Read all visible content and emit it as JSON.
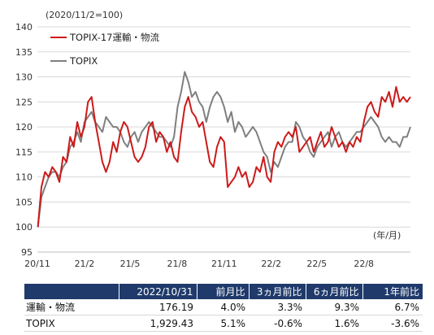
{
  "chart_data": {
    "type": "line",
    "base_note": "(2020/11/2=100)",
    "unit_note": "(年/月)",
    "ylim": [
      95,
      140
    ],
    "yticks": [
      "95",
      "100",
      "105",
      "110",
      "115",
      "120",
      "125",
      "130",
      "135",
      "140"
    ],
    "xticks": [
      "20/11",
      "21/2",
      "21/5",
      "21/8",
      "21/11",
      "22/2",
      "22/5",
      "22/8"
    ],
    "grid": "horizontal",
    "legend_position": "top-left",
    "series": [
      {
        "name": "TOPIX-17運輸・物流",
        "color": "#cc1a1a",
        "x": [
          "2020/11/2",
          "2020/11/9",
          "2020/11/16",
          "2020/11/23",
          "2020/11/30",
          "2020/12/7",
          "2020/12/14",
          "2020/12/21",
          "2020/12/28",
          "2021/1/4",
          "2021/1/11",
          "2021/1/18",
          "2021/1/25",
          "2021/2/1",
          "2021/2/8",
          "2021/2/15",
          "2021/2/22",
          "2021/3/1",
          "2021/3/8",
          "2021/3/15",
          "2021/3/22",
          "2021/3/29",
          "2021/4/5",
          "2021/4/12",
          "2021/4/19",
          "2021/4/26",
          "2021/5/3",
          "2021/5/10",
          "2021/5/17",
          "2021/5/24",
          "2021/5/31",
          "2021/6/7",
          "2021/6/14",
          "2021/6/21",
          "2021/6/28",
          "2021/7/5",
          "2021/7/12",
          "2021/7/19",
          "2021/7/26",
          "2021/8/2",
          "2021/8/9",
          "2021/8/16",
          "2021/8/23",
          "2021/8/30",
          "2021/9/6",
          "2021/9/13",
          "2021/9/20",
          "2021/9/27",
          "2021/10/4",
          "2021/10/11",
          "2021/10/18",
          "2021/10/25",
          "2021/11/1",
          "2021/11/8",
          "2021/11/15",
          "2021/11/22",
          "2021/11/29",
          "2021/12/6",
          "2021/12/13",
          "2021/12/20",
          "2021/12/27",
          "2022/1/3",
          "2022/1/10",
          "2022/1/17",
          "2022/1/24",
          "2022/1/31",
          "2022/2/7",
          "2022/2/14",
          "2022/2/21",
          "2022/2/28",
          "2022/3/7",
          "2022/3/14",
          "2022/3/21",
          "2022/3/28",
          "2022/4/4",
          "2022/4/11",
          "2022/4/18",
          "2022/4/25",
          "2022/5/2",
          "2022/5/9",
          "2022/5/16",
          "2022/5/23",
          "2022/5/30",
          "2022/6/6",
          "2022/6/13",
          "2022/6/20",
          "2022/6/27",
          "2022/7/4",
          "2022/7/11",
          "2022/7/18",
          "2022/7/25",
          "2022/8/1",
          "2022/8/8",
          "2022/8/15",
          "2022/8/22",
          "2022/8/29",
          "2022/9/5",
          "2022/9/12",
          "2022/9/19",
          "2022/9/26",
          "2022/10/3",
          "2022/10/10",
          "2022/10/17",
          "2022/10/24",
          "2022/10/31"
        ],
        "values": [
          100,
          108,
          111,
          110,
          112,
          111,
          109,
          114,
          113,
          118,
          116,
          121,
          118,
          120,
          125,
          126,
          121,
          117,
          113,
          111,
          113,
          117,
          115,
          119,
          121,
          120,
          117,
          114,
          113,
          114,
          116,
          120,
          121,
          117,
          119,
          118,
          115,
          117,
          114,
          113,
          119,
          124,
          126,
          123,
          122,
          120,
          121,
          117,
          113,
          112,
          116,
          118,
          117,
          108,
          109,
          110,
          112,
          110,
          111,
          108,
          109,
          112,
          111,
          114,
          110,
          109,
          115,
          117,
          116,
          118,
          119,
          118,
          120,
          115,
          116,
          117,
          118,
          115,
          117,
          119,
          116,
          117,
          120,
          118,
          116,
          117,
          115,
          117,
          116,
          118,
          117,
          121,
          124,
          125,
          123,
          122,
          126,
          125,
          127,
          124,
          128,
          125,
          126,
          125,
          126
        ]
      },
      {
        "name": "TOPIX",
        "color": "#7f7f7f",
        "x": [
          "2020/11/2",
          "2020/11/9",
          "2020/11/16",
          "2020/11/23",
          "2020/11/30",
          "2020/12/7",
          "2020/12/14",
          "2020/12/21",
          "2020/12/28",
          "2021/1/4",
          "2021/1/11",
          "2021/1/18",
          "2021/1/25",
          "2021/2/1",
          "2021/2/8",
          "2021/2/15",
          "2021/2/22",
          "2021/3/1",
          "2021/3/8",
          "2021/3/15",
          "2021/3/22",
          "2021/3/29",
          "2021/4/5",
          "2021/4/12",
          "2021/4/19",
          "2021/4/26",
          "2021/5/3",
          "2021/5/10",
          "2021/5/17",
          "2021/5/24",
          "2021/5/31",
          "2021/6/7",
          "2021/6/14",
          "2021/6/21",
          "2021/6/28",
          "2021/7/5",
          "2021/7/12",
          "2021/7/19",
          "2021/7/26",
          "2021/8/2",
          "2021/8/9",
          "2021/8/16",
          "2021/8/23",
          "2021/8/30",
          "2021/9/6",
          "2021/9/13",
          "2021/9/20",
          "2021/9/27",
          "2021/10/4",
          "2021/10/11",
          "2021/10/18",
          "2021/10/25",
          "2021/11/1",
          "2021/11/8",
          "2021/11/15",
          "2021/11/22",
          "2021/11/29",
          "2021/12/6",
          "2021/12/13",
          "2021/12/20",
          "2021/12/27",
          "2022/1/3",
          "2022/1/10",
          "2022/1/17",
          "2022/1/24",
          "2022/1/31",
          "2022/2/7",
          "2022/2/14",
          "2022/2/21",
          "2022/2/28",
          "2022/3/7",
          "2022/3/14",
          "2022/3/21",
          "2022/3/28",
          "2022/4/4",
          "2022/4/11",
          "2022/4/18",
          "2022/4/25",
          "2022/5/2",
          "2022/5/9",
          "2022/5/16",
          "2022/5/23",
          "2022/5/30",
          "2022/6/6",
          "2022/6/13",
          "2022/6/20",
          "2022/6/27",
          "2022/7/4",
          "2022/7/11",
          "2022/7/18",
          "2022/7/25",
          "2022/8/1",
          "2022/8/8",
          "2022/8/15",
          "2022/8/22",
          "2022/8/29",
          "2022/9/5",
          "2022/9/12",
          "2022/9/19",
          "2022/9/26",
          "2022/10/3",
          "2022/10/10",
          "2022/10/17",
          "2022/10/24",
          "2022/10/31"
        ],
        "values": [
          100,
          106,
          108,
          110,
          111,
          111,
          110,
          112,
          113,
          116,
          117,
          119,
          117,
          121,
          122,
          123,
          121,
          120,
          119,
          122,
          121,
          120,
          120,
          119,
          117,
          116,
          118,
          119,
          117,
          119,
          120,
          121,
          120,
          119,
          118,
          118,
          117,
          116,
          118,
          124,
          127,
          131,
          129,
          126,
          127,
          125,
          124,
          121,
          124,
          126,
          127,
          126,
          124,
          121,
          123,
          119,
          121,
          120,
          118,
          119,
          120,
          119,
          117,
          115,
          114,
          111,
          113,
          112,
          114,
          116,
          117,
          117,
          121,
          120,
          118,
          117,
          115,
          114,
          116,
          117,
          118,
          119,
          116,
          118,
          119,
          117,
          116,
          117,
          118,
          119,
          119,
          120,
          121,
          122,
          121,
          120,
          118,
          117,
          118,
          117,
          117,
          116,
          118,
          118,
          120
        ]
      }
    ]
  },
  "table": {
    "headers": [
      "",
      "2022/10/31",
      "前月比",
      "3ヵ月前比",
      "6ヵ月前比",
      "1年前比"
    ],
    "rows": [
      [
        "運輸・物流",
        "176.19",
        "4.0%",
        "3.3%",
        "9.3%",
        "6.7%"
      ],
      [
        "TOPIX",
        "1,929.43",
        "5.1%",
        "-0.6%",
        "1.6%",
        "-3.6%"
      ]
    ]
  }
}
